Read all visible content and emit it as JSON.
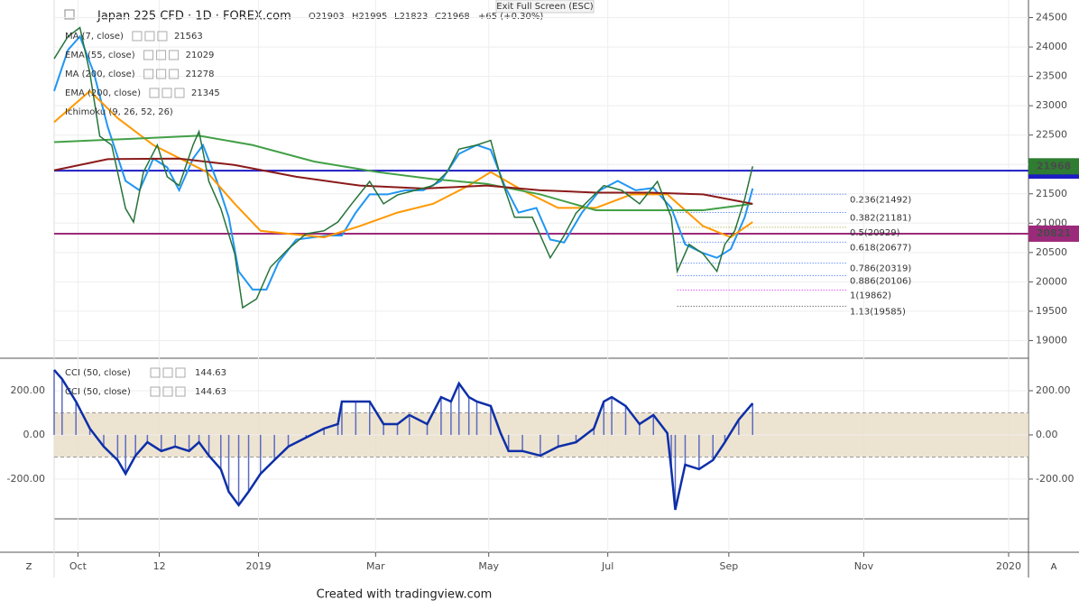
{
  "header": {
    "symbol": "Japan 225 CFD · 1D · FOREX.com",
    "open": "O21903",
    "high": "H21995",
    "low": "L21823",
    "close": "C21968",
    "change": "+65 (+0.30%)",
    "exit": "Exit Full Screen (ESC)"
  },
  "footer": "Created with tradingview.com",
  "corner_left": "Z",
  "corner_right": "A",
  "chart_data": [
    {
      "type": "line",
      "xlim": [
        -103,
        388
      ],
      "xticks": [
        {
          "value": -91,
          "label": "Oct"
        },
        {
          "value": -50,
          "label": "12"
        },
        {
          "value": 0,
          "label": "2019"
        },
        {
          "value": 59,
          "label": "Mar"
        },
        {
          "value": 116,
          "label": "May"
        },
        {
          "value": 176,
          "label": "Jul"
        },
        {
          "value": 237,
          "label": "Sep"
        },
        {
          "value": 305,
          "label": "Nov"
        },
        {
          "value": 378,
          "label": "2020"
        }
      ],
      "ylim": [
        18700,
        24800
      ],
      "yticks": [
        19000,
        19500,
        20000,
        20500,
        21000,
        21500,
        22000,
        22500,
        23000,
        23500,
        24000,
        24500
      ],
      "series": [
        {
          "color": "#26733a",
          "x": [
            -103,
            -96,
            -90,
            -85,
            -80,
            -74,
            -67,
            -63,
            -58,
            -51,
            -46,
            -40,
            -33,
            -30,
            -25,
            -19,
            -12,
            -8,
            -1,
            6,
            15,
            24,
            33,
            40,
            47,
            56,
            63,
            70,
            79,
            88,
            95,
            101,
            110,
            117,
            122,
            129,
            138,
            147,
            154,
            160,
            167,
            174,
            183,
            192,
            201,
            208,
            211,
            217,
            224,
            231,
            235,
            240,
            245,
            249
          ],
          "values": [
            23800,
            24180,
            24330,
            23560,
            22480,
            22330,
            21250,
            21020,
            21870,
            22330,
            21790,
            21640,
            22330,
            22560,
            21710,
            21250,
            20480,
            19560,
            19710,
            20250,
            20560,
            20820,
            20870,
            21020,
            21330,
            21710,
            21330,
            21480,
            21560,
            21640,
            21870,
            22260,
            22330,
            22410,
            21790,
            21100,
            21100,
            20410,
            20790,
            21170,
            21410,
            21640,
            21560,
            21330,
            21710,
            21100,
            20180,
            20640,
            20480,
            20180,
            20640,
            20870,
            21410,
            21968
          ]
        },
        {
          "name": "MA (7, close)",
          "last": 21563,
          "color": "#2196f3",
          "x": [
            -103,
            -96,
            -90,
            -83,
            -76,
            -67,
            -60,
            -53,
            -46,
            -40,
            -33,
            -28,
            -21,
            -15,
            -10,
            -3,
            4,
            10,
            19,
            28,
            35,
            42,
            49,
            56,
            65,
            74,
            83,
            92,
            101,
            110,
            117,
            124,
            131,
            140,
            147,
            154,
            163,
            172,
            181,
            190,
            199,
            208,
            215,
            224,
            231,
            238,
            245,
            249
          ],
          "values": [
            23250,
            23950,
            24180,
            23560,
            22640,
            21720,
            21560,
            22100,
            21950,
            21560,
            22100,
            22330,
            21720,
            21100,
            20180,
            19870,
            19870,
            20330,
            20720,
            20760,
            20790,
            20790,
            21180,
            21490,
            21490,
            21560,
            21560,
            21720,
            22180,
            22330,
            22250,
            21640,
            21180,
            21260,
            20720,
            20670,
            21180,
            21560,
            21720,
            21560,
            21600,
            21260,
            20640,
            20490,
            20410,
            20560,
            21100,
            21590
          ]
        },
        {
          "name": "EMA (55, close)",
          "last": 21029,
          "color": "#ff9800",
          "x": [
            -103,
            -85,
            -71,
            -53,
            -26,
            -12,
            1,
            15,
            33,
            51,
            70,
            88,
            106,
            117,
            133,
            151,
            170,
            188,
            206,
            224,
            238,
            249
          ],
          "values": [
            22720,
            23250,
            22790,
            22330,
            21870,
            21330,
            20870,
            20820,
            20760,
            20950,
            21180,
            21330,
            21640,
            21870,
            21560,
            21260,
            21260,
            21490,
            21490,
            20950,
            20760,
            21020
          ]
        },
        {
          "name": "MA (200, close)",
          "last": 21278,
          "color": "#43a047",
          "x": [
            -103,
            -62,
            -30,
            -3,
            28,
            60,
            88,
            115,
            142,
            170,
            197,
            224,
            249
          ],
          "values": [
            22380,
            22440,
            22490,
            22330,
            22050,
            21870,
            21750,
            21670,
            21490,
            21220,
            21220,
            21220,
            21330
          ]
        },
        {
          "name": "EMA (200, close)",
          "last": 21345,
          "color": "#8b1a1a",
          "x": [
            -103,
            -76,
            -40,
            -12,
            19,
            51,
            83,
            115,
            142,
            170,
            197,
            224,
            249
          ],
          "values": [
            21900,
            22090,
            22100,
            21990,
            21790,
            21640,
            21590,
            21640,
            21560,
            21520,
            21520,
            21490,
            21330
          ]
        }
      ],
      "extra_legend": "Ichimoku (9, 26, 52, 26)",
      "horizontal_lines": [
        {
          "value": 21895,
          "color": "#1c1cc4"
        },
        {
          "value": 20821,
          "color": "#9c2a7a"
        }
      ],
      "last_price": {
        "value": 21968,
        "color": "#2e7d32"
      },
      "fib": [
        {
          "label": "0.236(21492)",
          "value": 21492,
          "color": "#2962ff"
        },
        {
          "label": "0.382(21181)",
          "value": 21181,
          "color": "#2962ff"
        },
        {
          "label": "0.5(20929)",
          "value": 20929,
          "color": "#9e9d24"
        },
        {
          "label": "0.618(20677)",
          "value": 20677,
          "color": "#2962ff"
        },
        {
          "label": "0.786(20319)",
          "value": 20319,
          "color": "#2962ff"
        },
        {
          "label": "0.886(20106)",
          "value": 20106,
          "color": "#2962ff"
        },
        {
          "label": "1(19862)",
          "value": 19862,
          "color": "#d500f9"
        },
        {
          "label": "1.13(19585)",
          "value": 19585,
          "color": "#333333"
        }
      ]
    },
    {
      "type": "line",
      "ylim": [
        -380,
        347
      ],
      "yticks": [
        {
          "value": 200,
          "label": "200.00"
        },
        {
          "value": 0,
          "label": "0.00"
        },
        {
          "value": -200,
          "label": "-200.00"
        }
      ],
      "band": [
        -100,
        100
      ],
      "studies": [
        {
          "name": "CCI (50, close)",
          "last": 144.63
        },
        {
          "name": "CCI (50, close)",
          "last": 144.63
        }
      ],
      "series": [
        {
          "color": "#0d2fa8",
          "x": [
            -103,
            -99,
            -92,
            -85,
            -78,
            -71,
            -67,
            -62,
            -56,
            -49,
            -42,
            -35,
            -30,
            -25,
            -19,
            -15,
            -10,
            -5,
            1,
            8,
            15,
            24,
            33,
            40,
            42,
            49,
            56,
            63,
            70,
            76,
            85,
            92,
            97,
            101,
            106,
            110,
            117,
            122,
            126,
            133,
            142,
            151,
            160,
            169,
            174,
            178,
            185,
            192,
            199,
            206,
            208,
            210,
            215,
            222,
            229,
            235,
            242,
            249
          ],
          "values": [
            294,
            253,
            151,
            29,
            -53,
            -114,
            -176,
            -94,
            -33,
            -73,
            -53,
            -73,
            -33,
            -94,
            -155,
            -257,
            -318,
            -257,
            -176,
            -114,
            -53,
            -12,
            29,
            49,
            151,
            151,
            151,
            49,
            49,
            90,
            49,
            171,
            151,
            233,
            171,
            151,
            131,
            8,
            -73,
            -73,
            -94,
            -53,
            -33,
            29,
            151,
            171,
            131,
            49,
            90,
            8,
            -155,
            -339,
            -135,
            -155,
            -114,
            -33,
            69,
            143
          ]
        }
      ]
    }
  ]
}
